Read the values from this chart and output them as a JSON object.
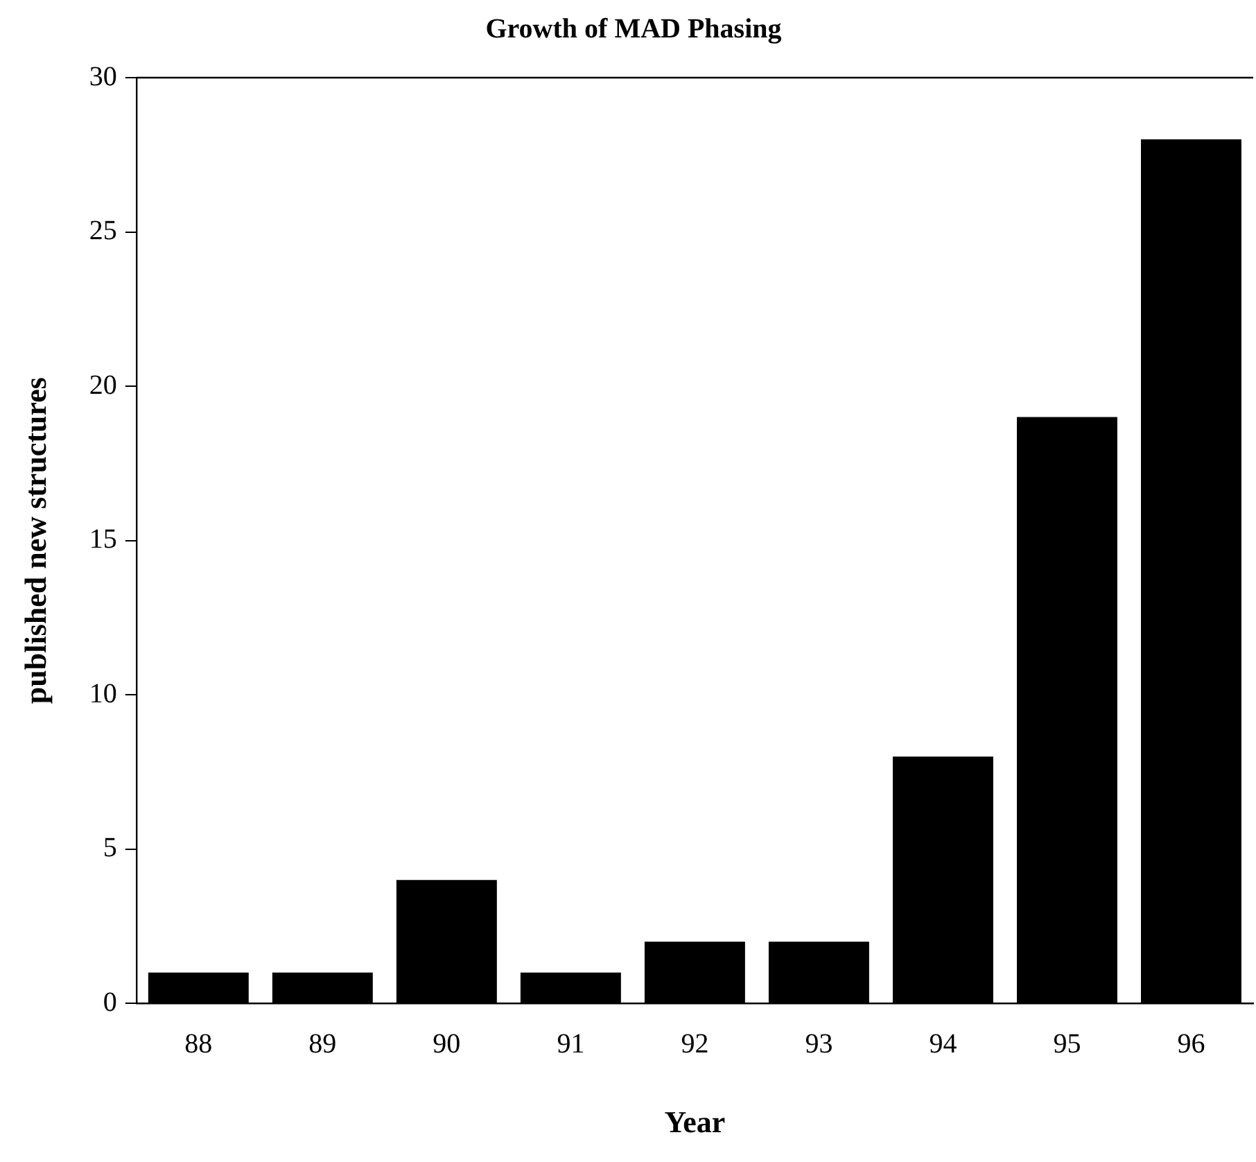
{
  "chart_data": {
    "type": "bar",
    "title": "Growth of MAD Phasing",
    "xlabel": "Year",
    "ylabel": "published new structures",
    "categories": [
      "88",
      "89",
      "90",
      "91",
      "92",
      "93",
      "94",
      "95",
      "96"
    ],
    "values": [
      1,
      1,
      4,
      1,
      2,
      2,
      8,
      19,
      28
    ],
    "color": "#000000",
    "ylim": [
      0,
      30
    ],
    "yticks": [
      0,
      5,
      10,
      15,
      20,
      25,
      30
    ],
    "grid": false,
    "legend": false
  }
}
